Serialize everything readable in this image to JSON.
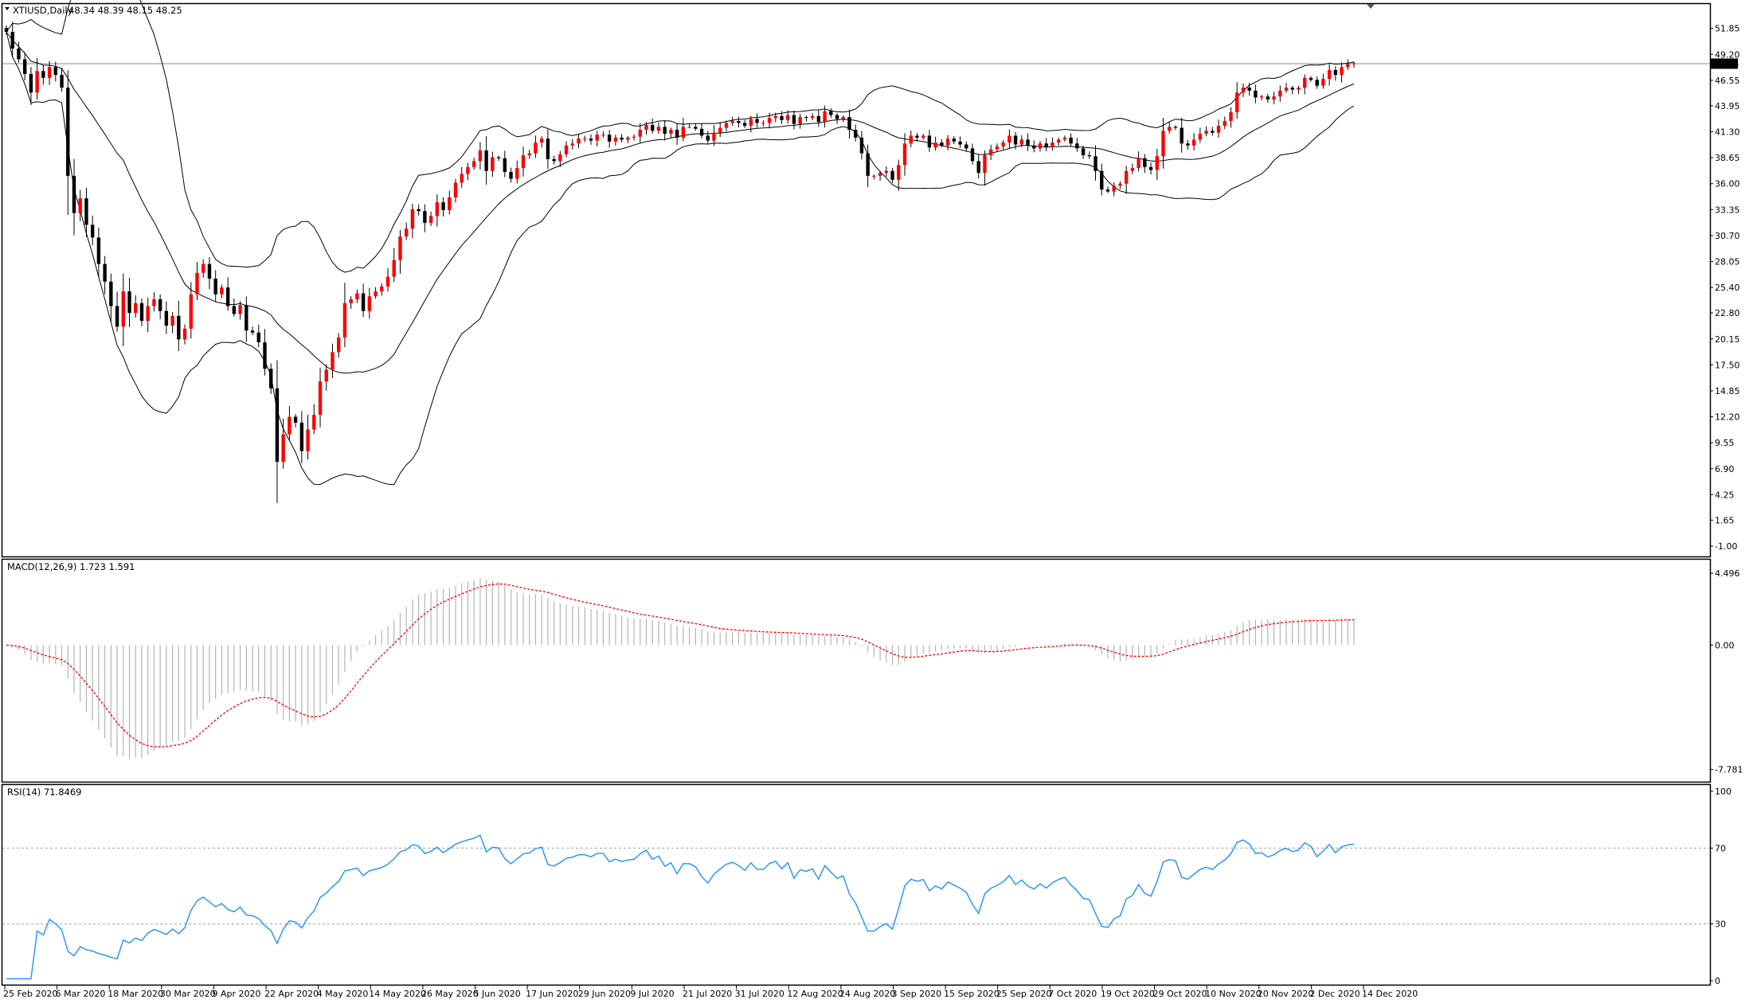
{
  "chart_data": {
    "type": "candlestick",
    "symbol_header": "XTIUSD,Daily",
    "ohlc_header": "48.34 48.39 48.15 48.25",
    "current_price": "48.25",
    "colors": {
      "bull": "#ff0000",
      "bear": "#000000",
      "bands": "#000000",
      "macd_hist": "#b4b4b4",
      "macd_signal": "#ff0000",
      "rsi_line": "#1e90ff",
      "level_line": "#a0a0a0",
      "frame": "#000000"
    },
    "price_axis": {
      "ticks": [
        "51.85",
        "49.20",
        "46.55",
        "43.95",
        "41.30",
        "38.65",
        "36.00",
        "33.35",
        "30.70",
        "28.05",
        "25.40",
        "22.80",
        "20.15",
        "17.50",
        "14.85",
        "12.20",
        "9.55",
        "6.90",
        "4.25",
        "1.65",
        "-1.00"
      ],
      "range": [
        -1.0,
        52.8
      ]
    },
    "date_labels": [
      "25 Feb 2020",
      "6 Mar 2020",
      "18 Mar 2020",
      "30 Mar 2020",
      "9 Apr 2020",
      "22 Apr 2020",
      "4 May 2020",
      "14 May 2020",
      "26 May 2020",
      "5 Jun 2020",
      "17 Jun 2020",
      "29 Jun 2020",
      "9 Jul 2020",
      "21 Jul 2020",
      "31 Jul 2020",
      "12 Aug 2020",
      "24 Aug 2020",
      "3 Sep 2020",
      "15 Sep 2020",
      "25 Sep 2020",
      "7 Oct 2020",
      "19 Oct 2020",
      "29 Oct 2020",
      "10 Nov 2020",
      "20 Nov 2020",
      "2 Dec 2020",
      "14 Dec 2020"
    ],
    "macd": {
      "title": "MACD(12,26,9) 1.723 1.591",
      "ticks": [
        "4.496",
        "0.00",
        "-7.781"
      ],
      "range": [
        -8.2,
        4.9
      ]
    },
    "rsi": {
      "title": "RSI(14) 71.8469",
      "ticks": [
        "100",
        "70",
        "30",
        "0"
      ],
      "levels": [
        70,
        30
      ]
    },
    "closes": [
      51.5,
      49.8,
      48.7,
      47.2,
      45.3,
      47.5,
      46.8,
      47.9,
      47.1,
      45.8,
      36.8,
      33.0,
      34.5,
      31.8,
      30.5,
      27.8,
      26.0,
      23.5,
      21.4,
      25.0,
      22.8,
      23.8,
      22.0,
      23.5,
      24.2,
      23.0,
      21.5,
      22.5,
      20.1,
      21.2,
      24.7,
      26.9,
      27.8,
      26.3,
      24.7,
      25.4,
      23.5,
      22.7,
      23.6,
      21.0,
      20.8,
      19.8,
      17.1,
      15.1,
      7.6,
      10.4,
      12.2,
      11.6,
      8.7,
      10.9,
      12.4,
      15.8,
      17.0,
      18.8,
      20.3,
      23.8,
      24.2,
      24.8,
      23.0,
      24.5,
      25.0,
      25.5,
      26.5,
      28.2,
      30.6,
      31.4,
      33.4,
      33.2,
      32.0,
      32.7,
      34.1,
      33.3,
      34.6,
      36.1,
      37.0,
      37.7,
      38.3,
      39.4,
      37.3,
      38.7,
      38.6,
      37.2,
      36.5,
      37.6,
      38.9,
      39.1,
      40.2,
      40.6,
      38.5,
      38.3,
      39.0,
      39.9,
      40.1,
      40.6,
      40.6,
      40.4,
      41.0,
      41.0,
      40.3,
      40.7,
      40.5,
      40.7,
      40.8,
      41.5,
      42.0,
      41.4,
      41.8,
      41.1,
      41.5,
      40.7,
      41.8,
      41.8,
      41.6,
      40.9,
      40.4,
      41.2,
      41.7,
      42.2,
      42.4,
      42.2,
      41.9,
      42.6,
      42.2,
      42.2,
      42.7,
      42.9,
      42.5,
      43.0,
      42.1,
      42.8,
      42.7,
      42.9,
      42.3,
      43.4,
      43.0,
      42.6,
      42.8,
      41.5,
      40.7,
      39.1,
      36.8,
      36.8,
      37.1,
      37.3,
      36.4,
      37.9,
      40.1,
      40.9,
      40.7,
      40.9,
      39.7,
      40.2,
      39.9,
      40.6,
      40.3,
      40.0,
      39.6,
      38.3,
      37.1,
      38.9,
      39.5,
      39.8,
      40.2,
      40.9,
      40.0,
      40.5,
      39.9,
      39.6,
      40.1,
      39.7,
      40.2,
      40.5,
      40.7,
      40.1,
      39.6,
      38.9,
      38.8,
      37.3,
      35.4,
      35.2,
      35.8,
      36.0,
      37.3,
      37.6,
      38.6,
      37.7,
      37.4,
      38.8,
      41.4,
      41.8,
      41.7,
      40.1,
      39.9,
      40.5,
      41.1,
      41.4,
      41.2,
      41.9,
      42.4,
      43.3,
      45.3,
      45.8,
      45.5,
      44.8,
      44.9,
      44.6,
      44.9,
      45.5,
      45.8,
      45.6,
      45.8,
      46.8,
      46.6,
      46.0,
      46.7,
      47.6,
      47.1,
      47.9,
      48.2,
      48.3
    ]
  }
}
